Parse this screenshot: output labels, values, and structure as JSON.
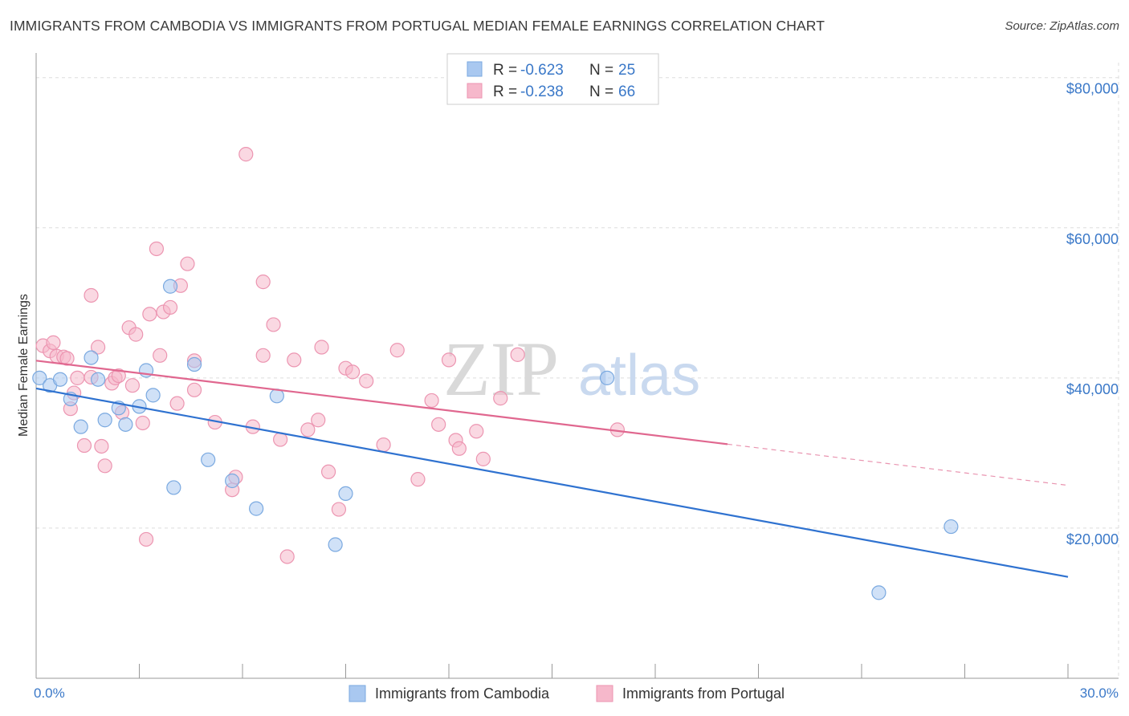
{
  "title": "IMMIGRANTS FROM CAMBODIA VS IMMIGRANTS FROM PORTUGAL MEDIAN FEMALE EARNINGS CORRELATION CHART",
  "source": "Source: ZipAtlas.com",
  "watermark": {
    "zip": "ZIP",
    "atlas": "atlas"
  },
  "colors": {
    "blue_fill": "#a9c8f0",
    "blue_stroke": "#7aa9e0",
    "blue_line": "#2f72d0",
    "pink_fill": "#f6b8cb",
    "pink_stroke": "#ec95b1",
    "pink_line": "#e0678f",
    "tick_text": "#3a78c8",
    "grid": "#dddddd"
  },
  "legend": {
    "rows": [
      {
        "r_label": "R =",
        "r_value": "-0.623",
        "n_label": "N =",
        "n_value": "25"
      },
      {
        "r_label": "R =",
        "r_value": "-0.238",
        "n_label": "N =",
        "n_value": "66"
      }
    ]
  },
  "chart_data": {
    "type": "scatter",
    "title": "IMMIGRANTS FROM CAMBODIA VS IMMIGRANTS FROM PORTUGAL MEDIAN FEMALE EARNINGS CORRELATION CHART",
    "xlabel": "",
    "ylabel": "Median Female Earnings",
    "xlim": [
      0,
      30
    ],
    "ylim": [
      0,
      82000
    ],
    "x_tick_labels": {
      "min": "0.0%",
      "max": "30.0%"
    },
    "y_ticks": [
      {
        "value": 20000,
        "label": "$20,000"
      },
      {
        "value": 40000,
        "label": "$40,000"
      },
      {
        "value": 60000,
        "label": "$60,000"
      },
      {
        "value": 80000,
        "label": "$80,000"
      }
    ],
    "series": [
      {
        "name": "Immigrants from Cambodia",
        "color": "blue",
        "trend": {
          "x0": 0,
          "y0": 38600,
          "x1": 30,
          "y1": 13500,
          "solid_to": 30
        },
        "points": [
          [
            0.1,
            40000
          ],
          [
            0.4,
            39000
          ],
          [
            0.7,
            39800
          ],
          [
            1.0,
            37200
          ],
          [
            1.3,
            33500
          ],
          [
            1.6,
            42700
          ],
          [
            1.8,
            39800
          ],
          [
            2.0,
            34400
          ],
          [
            2.4,
            36000
          ],
          [
            2.6,
            33800
          ],
          [
            3.0,
            36200
          ],
          [
            3.2,
            41000
          ],
          [
            3.4,
            37700
          ],
          [
            3.9,
            52200
          ],
          [
            4.0,
            25400
          ],
          [
            4.6,
            41800
          ],
          [
            5.0,
            29100
          ],
          [
            5.7,
            26300
          ],
          [
            6.4,
            22600
          ],
          [
            7.0,
            37600
          ],
          [
            9.0,
            24600
          ],
          [
            8.7,
            17800
          ],
          [
            16.6,
            40000
          ],
          [
            24.5,
            11400
          ],
          [
            26.6,
            20200
          ]
        ]
      },
      {
        "name": "Immigrants from Portugal",
        "color": "pink",
        "trend": {
          "x0": 0,
          "y0": 42300,
          "x1": 30,
          "y1": 25700,
          "solid_to": 20.1
        },
        "points": [
          [
            0.2,
            44300
          ],
          [
            0.4,
            43600
          ],
          [
            0.5,
            44700
          ],
          [
            0.6,
            42900
          ],
          [
            0.8,
            42800
          ],
          [
            0.9,
            42600
          ],
          [
            1.0,
            35900
          ],
          [
            1.1,
            38000
          ],
          [
            1.2,
            40000
          ],
          [
            1.4,
            31000
          ],
          [
            1.6,
            40100
          ],
          [
            1.6,
            51000
          ],
          [
            1.8,
            44100
          ],
          [
            1.9,
            30900
          ],
          [
            2.0,
            28300
          ],
          [
            2.2,
            39300
          ],
          [
            2.3,
            40000
          ],
          [
            2.4,
            40300
          ],
          [
            2.5,
            35400
          ],
          [
            2.7,
            46700
          ],
          [
            2.8,
            39000
          ],
          [
            2.9,
            45800
          ],
          [
            3.1,
            34000
          ],
          [
            3.2,
            18500
          ],
          [
            3.3,
            48500
          ],
          [
            3.5,
            57200
          ],
          [
            3.6,
            43000
          ],
          [
            3.7,
            48800
          ],
          [
            3.9,
            49400
          ],
          [
            4.1,
            36600
          ],
          [
            4.2,
            52300
          ],
          [
            4.4,
            55200
          ],
          [
            4.6,
            38400
          ],
          [
            4.6,
            42300
          ],
          [
            5.2,
            34100
          ],
          [
            5.7,
            25100
          ],
          [
            5.8,
            26800
          ],
          [
            6.1,
            69800
          ],
          [
            6.3,
            33500
          ],
          [
            6.6,
            43000
          ],
          [
            6.6,
            52800
          ],
          [
            6.9,
            47100
          ],
          [
            7.1,
            31800
          ],
          [
            7.3,
            16200
          ],
          [
            7.5,
            42400
          ],
          [
            7.9,
            33100
          ],
          [
            8.2,
            34400
          ],
          [
            8.3,
            44100
          ],
          [
            8.5,
            27500
          ],
          [
            8.8,
            22500
          ],
          [
            9.0,
            41300
          ],
          [
            9.2,
            40800
          ],
          [
            9.6,
            39600
          ],
          [
            10.1,
            31100
          ],
          [
            10.5,
            43700
          ],
          [
            11.1,
            26500
          ],
          [
            11.5,
            37000
          ],
          [
            11.7,
            33800
          ],
          [
            12.0,
            42400
          ],
          [
            12.2,
            31700
          ],
          [
            12.3,
            30600
          ],
          [
            12.8,
            32900
          ],
          [
            13.0,
            29200
          ],
          [
            13.5,
            37300
          ],
          [
            14.0,
            43100
          ],
          [
            16.9,
            33100
          ]
        ]
      }
    ]
  },
  "bottom_legend": {
    "items": [
      {
        "label": "Immigrants from Cambodia"
      },
      {
        "label": "Immigrants from Portugal"
      }
    ]
  }
}
